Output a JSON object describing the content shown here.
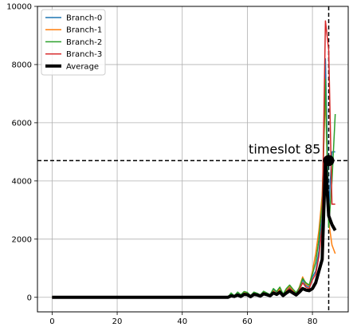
{
  "chart_data": {
    "type": "line",
    "xlim": [
      -4.5,
      91
    ],
    "ylim": [
      -500,
      10000
    ],
    "grid": true,
    "xticks": [
      0,
      20,
      40,
      60,
      80
    ],
    "yticks": [
      0,
      2000,
      4000,
      6000,
      8000,
      10000
    ],
    "legend_position": "top-left",
    "series": [
      {
        "name": "Branch-0",
        "color": "#1f77b4",
        "x": [
          0,
          54,
          55,
          56,
          57,
          58,
          59,
          60,
          61,
          62,
          63,
          64,
          65,
          66,
          67,
          68,
          69,
          70,
          71,
          72,
          73,
          74,
          75,
          76,
          77,
          78,
          79,
          80,
          81,
          82,
          83,
          84,
          85,
          86,
          87
        ],
        "values": [
          0,
          0,
          100,
          60,
          120,
          50,
          150,
          130,
          40,
          140,
          120,
          60,
          180,
          120,
          70,
          250,
          150,
          280,
          90,
          230,
          350,
          220,
          140,
          300,
          600,
          400,
          350,
          700,
          900,
          1600,
          2800,
          8200,
          3000,
          5000,
          5000
        ]
      },
      {
        "name": "Branch-1",
        "color": "#ff7f0e",
        "x": [
          0,
          54,
          55,
          56,
          57,
          58,
          59,
          60,
          61,
          62,
          63,
          64,
          65,
          66,
          67,
          68,
          69,
          70,
          71,
          72,
          73,
          74,
          75,
          76,
          77,
          78,
          79,
          80,
          81,
          82,
          83,
          84,
          85,
          86,
          87
        ],
        "values": [
          0,
          0,
          80,
          40,
          100,
          30,
          180,
          150,
          20,
          160,
          100,
          40,
          200,
          100,
          50,
          220,
          130,
          300,
          60,
          260,
          380,
          250,
          120,
          350,
          700,
          450,
          400,
          900,
          1500,
          2300,
          3500,
          7000,
          2600,
          1800,
          1500
        ]
      },
      {
        "name": "Branch-2",
        "color": "#2ca02c",
        "x": [
          0,
          54,
          55,
          56,
          57,
          58,
          59,
          60,
          61,
          62,
          63,
          64,
          65,
          66,
          67,
          68,
          69,
          70,
          71,
          72,
          73,
          74,
          75,
          76,
          77,
          78,
          79,
          80,
          81,
          82,
          83,
          84,
          85,
          86,
          87
        ],
        "values": [
          0,
          0,
          150,
          50,
          180,
          90,
          200,
          170,
          60,
          180,
          140,
          80,
          210,
          150,
          90,
          300,
          200,
          350,
          110,
          300,
          420,
          280,
          160,
          330,
          650,
          500,
          420,
          800,
          1200,
          2000,
          3200,
          7500,
          2400,
          4000,
          6300
        ]
      },
      {
        "name": "Branch-3",
        "color": "#d62728",
        "x": [
          0,
          54,
          55,
          56,
          57,
          58,
          59,
          60,
          61,
          62,
          63,
          64,
          65,
          66,
          67,
          68,
          69,
          70,
          71,
          72,
          73,
          74,
          75,
          76,
          77,
          78,
          79,
          80,
          81,
          82,
          83,
          84,
          85,
          86,
          87
        ],
        "values": [
          0,
          0,
          60,
          30,
          90,
          20,
          120,
          100,
          30,
          110,
          80,
          30,
          150,
          80,
          40,
          180,
          100,
          230,
          50,
          200,
          300,
          200,
          100,
          260,
          500,
          350,
          300,
          600,
          800,
          1400,
          2500,
          9500,
          8500,
          3200,
          3200
        ]
      },
      {
        "name": "Average",
        "color": "#000000",
        "x": [
          0,
          54,
          55,
          56,
          57,
          58,
          59,
          60,
          61,
          62,
          63,
          64,
          65,
          66,
          67,
          68,
          69,
          70,
          71,
          72,
          73,
          74,
          75,
          76,
          77,
          78,
          79,
          80,
          81,
          82,
          83,
          84,
          85,
          86,
          87
        ],
        "values": [
          0,
          0,
          50,
          30,
          80,
          30,
          100,
          90,
          20,
          100,
          80,
          40,
          120,
          90,
          50,
          150,
          100,
          180,
          60,
          150,
          220,
          150,
          80,
          180,
          300,
          250,
          230,
          300,
          500,
          900,
          1300,
          4700,
          2800,
          2500,
          2300
        ]
      }
    ],
    "reference_lines": {
      "vertical_x": 85,
      "horizontal_y": 4700
    },
    "marker": {
      "x": 85,
      "y": 4700
    },
    "annotation": {
      "text": "timeslot 85",
      "x": 85,
      "y": 4700
    }
  }
}
